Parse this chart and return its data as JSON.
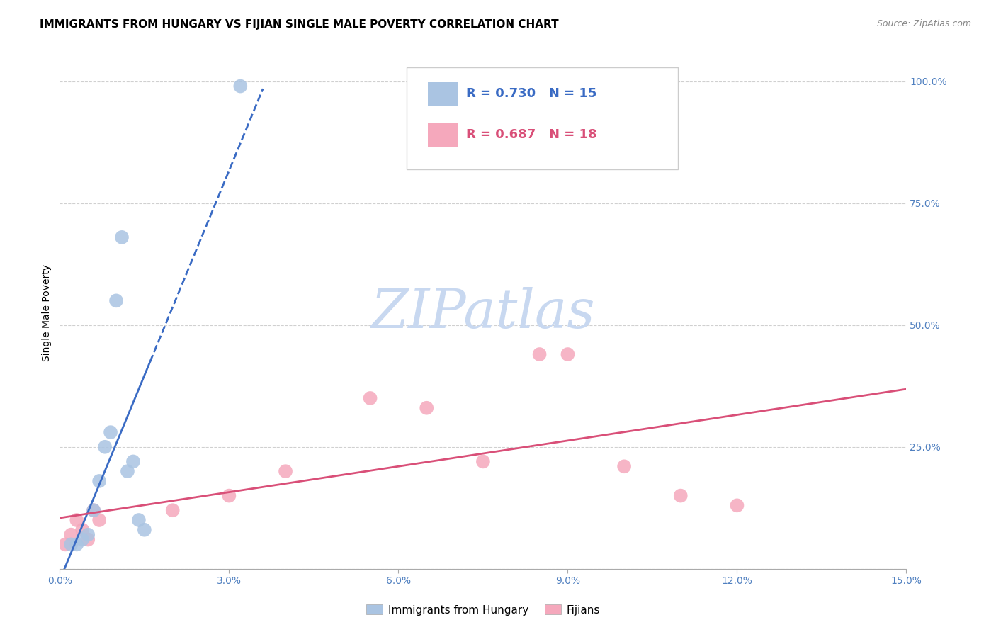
{
  "title": "IMMIGRANTS FROM HUNGARY VS FIJIAN SINGLE MALE POVERTY CORRELATION CHART",
  "source": "Source: ZipAtlas.com",
  "ylabel": "Single Male Poverty",
  "xlabel": "",
  "xlim": [
    0.0,
    0.15
  ],
  "ylim": [
    0.0,
    1.05
  ],
  "xticks": [
    0.0,
    0.03,
    0.06,
    0.09,
    0.12,
    0.15
  ],
  "xticklabels": [
    "0.0%",
    "3.0%",
    "6.0%",
    "9.0%",
    "12.0%",
    "15.0%"
  ],
  "yticks": [
    0.0,
    0.25,
    0.5,
    0.75,
    1.0
  ],
  "yticklabels": [
    "",
    "25.0%",
    "50.0%",
    "75.0%",
    "100.0%"
  ],
  "hungary_R": 0.73,
  "hungary_N": 15,
  "fijian_R": 0.687,
  "fijian_N": 18,
  "hungary_color": "#aac4e2",
  "fijian_color": "#f5a8bc",
  "hungary_line_color": "#3a6bc4",
  "fijian_line_color": "#d94f78",
  "hungary_points_x": [
    0.002,
    0.003,
    0.004,
    0.005,
    0.006,
    0.007,
    0.008,
    0.009,
    0.01,
    0.011,
    0.012,
    0.013,
    0.014,
    0.015,
    0.032
  ],
  "hungary_points_y": [
    0.05,
    0.05,
    0.06,
    0.07,
    0.12,
    0.18,
    0.25,
    0.28,
    0.55,
    0.68,
    0.2,
    0.22,
    0.1,
    0.08,
    0.99
  ],
  "fijian_points_x": [
    0.001,
    0.002,
    0.003,
    0.004,
    0.005,
    0.006,
    0.007,
    0.02,
    0.03,
    0.04,
    0.055,
    0.065,
    0.075,
    0.085,
    0.09,
    0.1,
    0.11,
    0.12
  ],
  "fijian_points_y": [
    0.05,
    0.07,
    0.1,
    0.08,
    0.06,
    0.12,
    0.1,
    0.12,
    0.15,
    0.2,
    0.35,
    0.33,
    0.22,
    0.44,
    0.44,
    0.21,
    0.15,
    0.13
  ],
  "grid_color": "#d0d0d0",
  "background_color": "#ffffff",
  "title_fontsize": 11,
  "axis_label_fontsize": 10,
  "tick_fontsize": 10,
  "legend_fontsize": 13
}
